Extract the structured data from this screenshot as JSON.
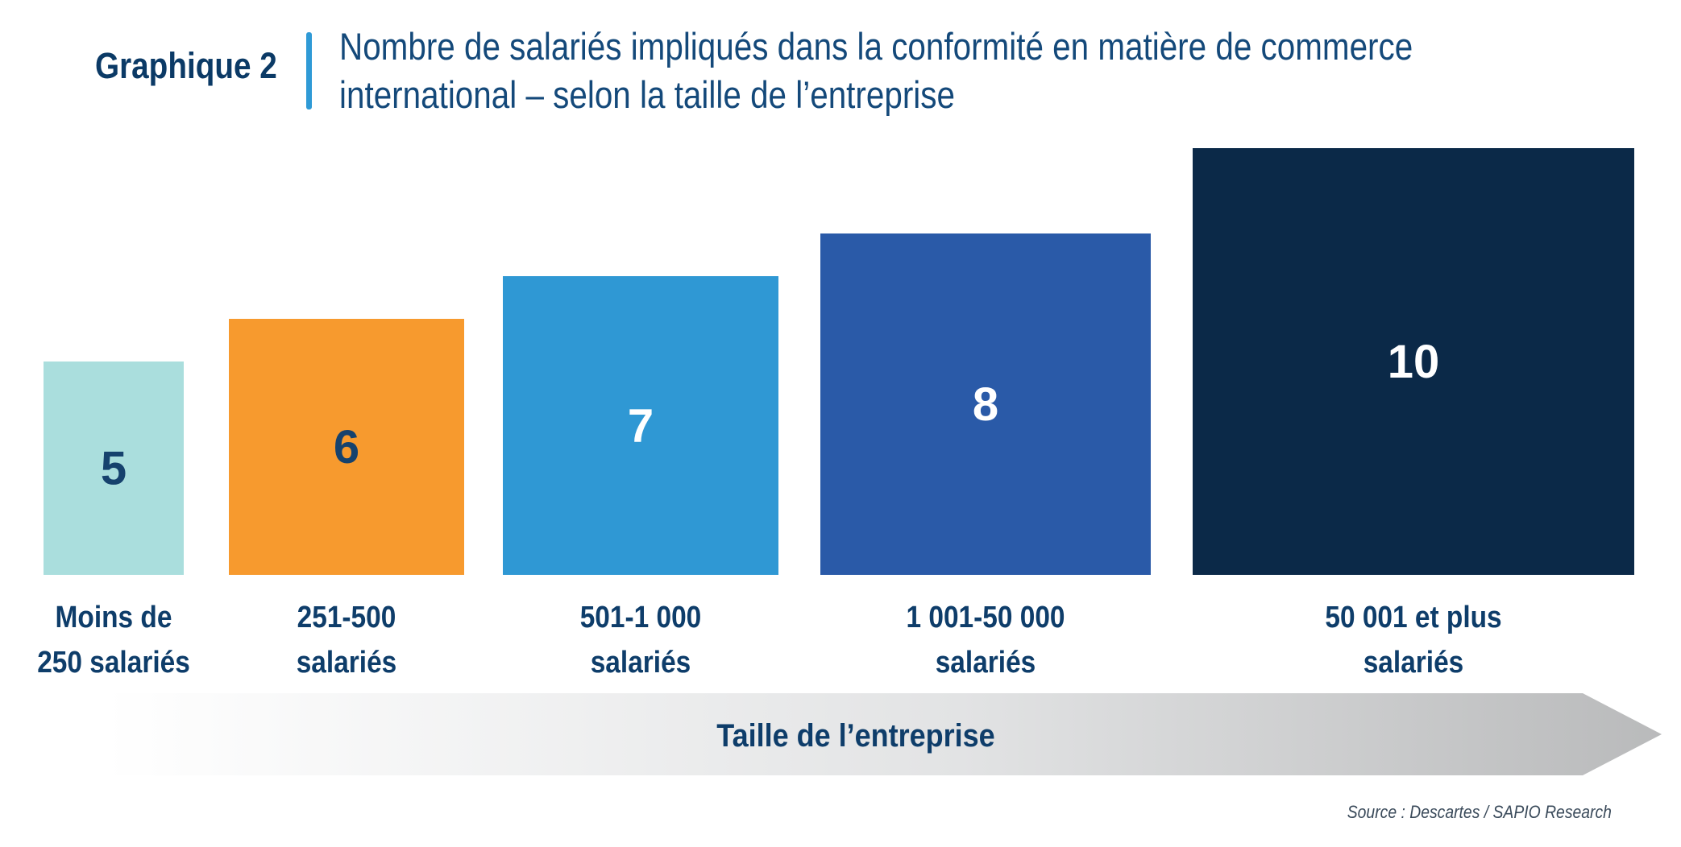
{
  "header": {
    "graph_label": "Graphique 2",
    "title": "Nombre de salariés impliqués dans la conformité en matière de commerce international – selon la taille de l’entreprise"
  },
  "chart_data": {
    "type": "bar",
    "title": "Nombre de salariés impliqués dans la conformité en matière de commerce international – selon la taille de l’entreprise",
    "xlabel": "Taille de l’entreprise",
    "ylabel": "",
    "categories": [
      [
        "Moins de",
        "250 salariés"
      ],
      [
        "251-500",
        "salariés"
      ],
      [
        "501-1 000",
        "salariés"
      ],
      [
        "1 001-50 000",
        "salariés"
      ],
      [
        "50 001 et plus",
        "salariés"
      ]
    ],
    "values": [
      5,
      6,
      7,
      8,
      10
    ],
    "colors": [
      "#aadedd",
      "#f79a2e",
      "#2f98d4",
      "#2a5aa8",
      "#0b2948"
    ],
    "value_label_colors": [
      "#16426d",
      "#16426d",
      "#ffffff",
      "#ffffff",
      "#ffffff"
    ]
  },
  "footer": {
    "source": "Source : Descartes / SAPIO Research"
  }
}
